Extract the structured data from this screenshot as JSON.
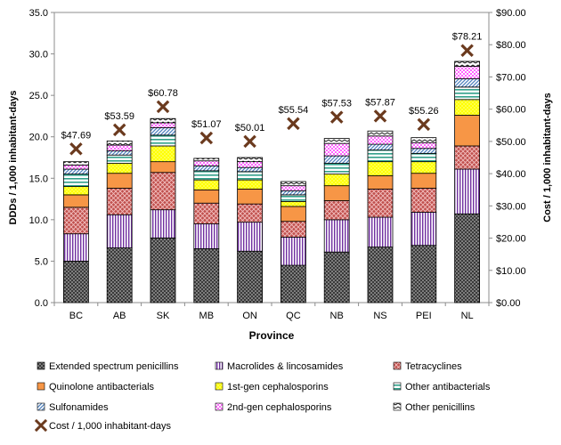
{
  "chart_data": {
    "type": "bar",
    "stacked": true,
    "title": "",
    "xlabel": "Province",
    "ylabel_left": "DDDs / 1,000 inhabitant-days",
    "ylabel_right": "Cost / 1,000 inhabitant-days",
    "ylim_left": [
      0,
      35
    ],
    "ylim_right": [
      0,
      90
    ],
    "yticks_left": [
      "0.0",
      "5.0",
      "10.0",
      "15.0",
      "20.0",
      "25.0",
      "30.0",
      "35.0"
    ],
    "yticks_right": [
      "$0.00",
      "$10.00",
      "$20.00",
      "$30.00",
      "$40.00",
      "$50.00",
      "$60.00",
      "$70.00",
      "$80.00",
      "$90.00"
    ],
    "grid": false,
    "legend_position": "bottom",
    "categories": [
      "BC",
      "AB",
      "SK",
      "MB",
      "ON",
      "QC",
      "NB",
      "NS",
      "PEI",
      "NL"
    ],
    "series": [
      {
        "name": "Extended spectrum penicillins",
        "fill": "#444444",
        "pattern": "dots",
        "values": [
          5.0,
          6.6,
          7.8,
          6.5,
          6.2,
          4.5,
          6.1,
          6.7,
          6.9,
          10.7
        ]
      },
      {
        "name": "Macrolides & lincosamides",
        "fill": "#ffffff",
        "pattern": "vlines-purple",
        "values": [
          3.3,
          4.0,
          3.4,
          3.0,
          3.5,
          3.4,
          3.9,
          3.6,
          4.0,
          5.4
        ]
      },
      {
        "name": "Tetracyclines",
        "fill": "#d02a2a",
        "pattern": "cross-red",
        "values": [
          3.2,
          3.2,
          4.5,
          2.5,
          2.2,
          1.9,
          2.3,
          3.4,
          2.9,
          2.8
        ]
      },
      {
        "name": "Quinolone antibacterials",
        "fill": "#f79646",
        "pattern": "solid",
        "values": [
          1.5,
          1.8,
          1.3,
          1.6,
          1.8,
          1.8,
          1.8,
          1.6,
          1.8,
          3.7
        ]
      },
      {
        "name": "1st-gen cephalosporins",
        "fill": "#ffff00",
        "pattern": "dots-yellow",
        "values": [
          1.0,
          1.2,
          1.9,
          1.2,
          1.1,
          0.6,
          1.4,
          1.7,
          1.4,
          1.9
        ]
      },
      {
        "name": "Other antibacterials",
        "fill": "#ffffff",
        "pattern": "hlines-teal",
        "values": [
          1.5,
          1.0,
          1.3,
          1.1,
          1.0,
          0.8,
          1.3,
          1.4,
          1.0,
          1.5
        ]
      },
      {
        "name": "Sulfonamides",
        "fill": "#ffffff",
        "pattern": "diag-blue",
        "values": [
          0.6,
          0.5,
          0.9,
          0.6,
          0.5,
          0.5,
          0.9,
          0.7,
          0.6,
          1.0
        ]
      },
      {
        "name": "2nd-gen cephalosporins",
        "fill": "#ff99ff",
        "pattern": "checks-pink",
        "values": [
          0.5,
          0.7,
          0.6,
          0.6,
          0.7,
          0.6,
          1.5,
          1.0,
          0.7,
          1.5
        ]
      },
      {
        "name": "Other penicillins",
        "fill": "#ffffff",
        "pattern": "zigzag",
        "values": [
          0.4,
          0.5,
          0.5,
          0.3,
          0.5,
          0.5,
          0.6,
          0.6,
          0.6,
          0.6
        ]
      }
    ],
    "cost_series": {
      "name": "Cost / 1,000 inhabitant-days",
      "marker": "x",
      "color": "#6b3a1e",
      "values": [
        47.69,
        53.59,
        60.78,
        51.07,
        50.01,
        55.54,
        57.53,
        57.87,
        55.26,
        78.21
      ],
      "labels": [
        "$47.69",
        "$53.59",
        "$60.78",
        "$51.07",
        "$50.01",
        "$55.54",
        "$57.53",
        "$57.87",
        "$55.26",
        "$78.21"
      ]
    }
  }
}
